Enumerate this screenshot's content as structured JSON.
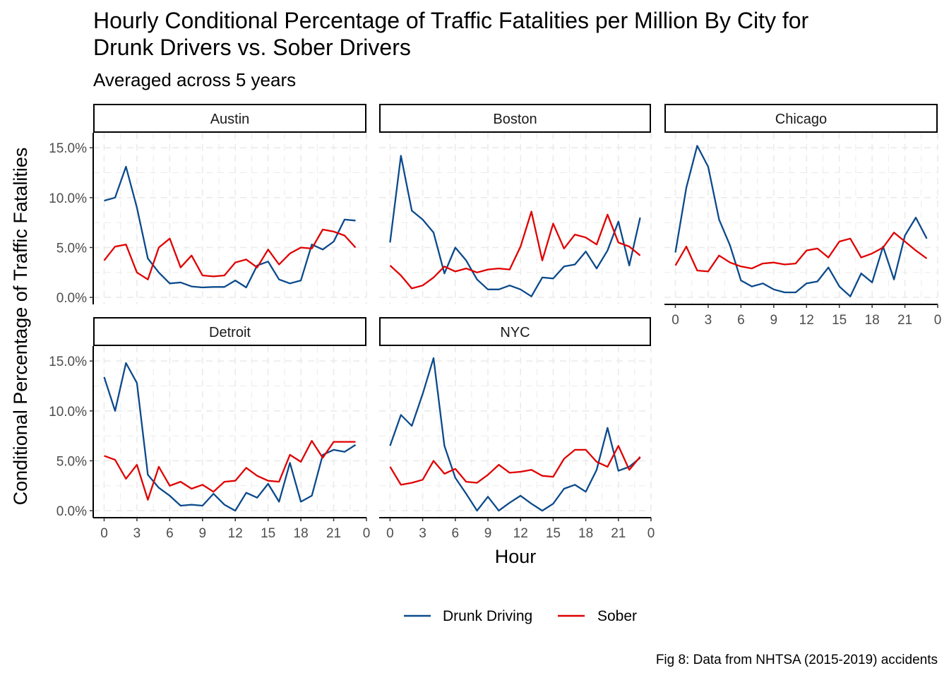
{
  "chart_data": {
    "type": "line",
    "title_line1": "Hourly Conditional Percentage of Traffic Fatalities per Million By City for",
    "title_line2": "Drunk Drivers vs. Sober Drivers",
    "subtitle": "Averaged across 5 years",
    "xlabel": "Hour",
    "ylabel": "Conditional Percentage of Traffic Fatalities",
    "caption": "Fig 8: Data from NHTSA (2015-2019) accidents",
    "x_ticks": [
      "0",
      "3",
      "6",
      "9",
      "12",
      "15",
      "18",
      "21",
      "0"
    ],
    "y_ticks": [
      "0.0%",
      "5.0%",
      "10.0%",
      "15.0%"
    ],
    "xlim": [
      -1,
      24
    ],
    "ylim": [
      -0.7,
      16.5
    ],
    "grid": true,
    "legend_position": "bottom",
    "series_colors": {
      "Drunk Driving": "#0b4a8b",
      "Sober": "#e00000"
    },
    "legend": [
      "Drunk Driving",
      "Sober"
    ],
    "x": [
      0,
      1,
      2,
      3,
      4,
      5,
      6,
      7,
      8,
      9,
      10,
      11,
      12,
      13,
      14,
      15,
      16,
      17,
      18,
      19,
      20,
      21,
      22,
      23
    ],
    "panels": [
      {
        "city": "Austin",
        "series": [
          {
            "name": "Drunk Driving",
            "values": [
              9.7,
              10.0,
              13.1,
              9.0,
              3.9,
              2.5,
              1.4,
              1.5,
              1.1,
              1.0,
              1.05,
              1.05,
              1.7,
              1.0,
              3.2,
              3.6,
              1.8,
              1.4,
              1.7,
              5.3,
              4.8,
              5.6,
              7.8,
              7.7
            ]
          },
          {
            "name": "Sober",
            "values": [
              3.7,
              5.1,
              5.3,
              2.5,
              1.8,
              5.0,
              5.9,
              3.0,
              4.2,
              2.2,
              2.1,
              2.2,
              3.5,
              3.8,
              3.0,
              4.8,
              3.3,
              4.4,
              5.0,
              4.9,
              6.8,
              6.6,
              6.2,
              5.0
            ]
          }
        ]
      },
      {
        "city": "Boston",
        "series": [
          {
            "name": "Drunk Driving",
            "values": [
              5.5,
              14.2,
              8.7,
              7.8,
              6.5,
              2.4,
              5.0,
              3.7,
              1.8,
              0.8,
              0.8,
              1.2,
              0.8,
              0.1,
              2.0,
              1.9,
              3.1,
              3.3,
              4.6,
              2.9,
              4.7,
              7.6,
              3.2,
              8.0
            ]
          },
          {
            "name": "Sober",
            "values": [
              3.2,
              2.2,
              0.9,
              1.2,
              2.0,
              3.1,
              2.6,
              2.9,
              2.5,
              2.8,
              2.9,
              2.8,
              5.1,
              8.6,
              3.7,
              7.4,
              4.9,
              6.3,
              6.0,
              5.3,
              8.3,
              5.5,
              5.1,
              4.2
            ]
          }
        ]
      },
      {
        "city": "Chicago",
        "series": [
          {
            "name": "Drunk Driving",
            "values": [
              4.5,
              11.0,
              15.2,
              13.1,
              7.8,
              5.2,
              1.7,
              1.1,
              1.4,
              0.8,
              0.5,
              0.5,
              1.4,
              1.6,
              3.0,
              1.1,
              0.1,
              2.4,
              1.5,
              5.1,
              1.8,
              6.2,
              8.0,
              5.9
            ]
          },
          {
            "name": "Sober",
            "values": [
              3.2,
              5.1,
              2.7,
              2.6,
              4.2,
              3.5,
              3.1,
              2.9,
              3.4,
              3.5,
              3.3,
              3.4,
              4.7,
              4.9,
              4.0,
              5.6,
              5.9,
              4.0,
              4.4,
              5.0,
              6.5,
              5.6,
              4.7,
              3.9
            ]
          }
        ]
      },
      {
        "city": "Detroit",
        "series": [
          {
            "name": "Drunk Driving",
            "values": [
              13.4,
              10.0,
              14.8,
              12.8,
              3.6,
              2.3,
              1.5,
              0.5,
              0.6,
              0.5,
              1.7,
              0.6,
              0.0,
              1.8,
              1.3,
              2.7,
              0.9,
              4.8,
              0.9,
              1.5,
              5.6,
              6.1,
              5.9,
              6.6
            ]
          },
          {
            "name": "Sober",
            "values": [
              5.5,
              5.1,
              3.2,
              4.6,
              1.1,
              4.4,
              2.5,
              2.9,
              2.2,
              2.6,
              1.9,
              2.9,
              3.0,
              4.3,
              3.5,
              3.0,
              2.9,
              5.6,
              4.9,
              7.0,
              5.3,
              6.9,
              6.9,
              6.9
            ]
          }
        ]
      },
      {
        "city": "NYC",
        "series": [
          {
            "name": "Drunk Driving",
            "values": [
              6.5,
              9.6,
              8.5,
              11.7,
              15.3,
              6.5,
              3.3,
              1.7,
              0.0,
              1.4,
              0.0,
              0.8,
              1.5,
              0.7,
              0.0,
              0.7,
              2.2,
              2.6,
              1.9,
              4.1,
              8.3,
              4.0,
              4.4,
              5.3
            ]
          },
          {
            "name": "Sober",
            "values": [
              4.4,
              2.6,
              2.8,
              3.1,
              5.0,
              3.7,
              4.2,
              2.9,
              2.8,
              3.6,
              4.6,
              3.8,
              3.9,
              4.1,
              3.5,
              3.4,
              5.2,
              6.1,
              6.1,
              4.9,
              4.4,
              6.5,
              4.1,
              5.4
            ]
          }
        ]
      }
    ]
  }
}
